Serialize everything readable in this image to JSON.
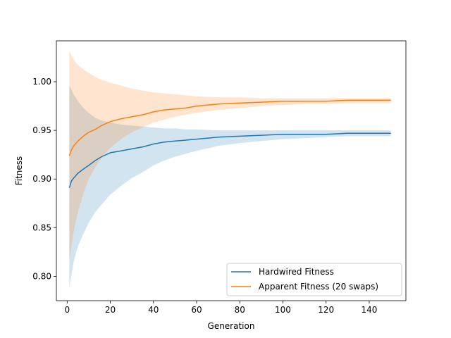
{
  "chart_data": {
    "type": "line",
    "title": "",
    "xlabel": "Generation",
    "ylabel": "Fitness",
    "xlim": [
      -5,
      157
    ],
    "ylim": [
      0.775,
      1.042
    ],
    "xticks": [
      0,
      20,
      40,
      60,
      80,
      100,
      120,
      140
    ],
    "yticks": [
      0.8,
      0.85,
      0.9,
      0.95,
      1.0
    ],
    "ytick_labels": [
      "0.80",
      "0.85",
      "0.90",
      "0.95",
      "1.00"
    ],
    "grid": false,
    "legend_position": "lower-right",
    "series": [
      {
        "name": "Hardwired Fitness",
        "color": "#1f77b4",
        "band_opacity": 0.2,
        "x": [
          1,
          2,
          3,
          5,
          8,
          10,
          13,
          16,
          20,
          25,
          30,
          35,
          40,
          45,
          50,
          55,
          60,
          70,
          80,
          90,
          100,
          110,
          120,
          130,
          135,
          140,
          150
        ],
        "y": [
          0.891,
          0.898,
          0.901,
          0.906,
          0.911,
          0.914,
          0.919,
          0.923,
          0.927,
          0.929,
          0.931,
          0.933,
          0.936,
          0.938,
          0.939,
          0.94,
          0.941,
          0.943,
          0.944,
          0.945,
          0.946,
          0.946,
          0.946,
          0.947,
          0.947,
          0.947,
          0.947
        ],
        "lower": [
          0.788,
          0.802,
          0.815,
          0.831,
          0.846,
          0.855,
          0.866,
          0.874,
          0.884,
          0.893,
          0.901,
          0.907,
          0.914,
          0.919,
          0.923,
          0.926,
          0.929,
          0.934,
          0.937,
          0.939,
          0.941,
          0.942,
          0.943,
          0.944,
          0.944,
          0.944,
          0.944
        ],
        "upper": [
          0.996,
          0.992,
          0.987,
          0.98,
          0.972,
          0.968,
          0.963,
          0.96,
          0.958,
          0.956,
          0.955,
          0.954,
          0.953,
          0.952,
          0.952,
          0.951,
          0.951,
          0.95,
          0.95,
          0.95,
          0.95,
          0.95,
          0.95,
          0.95,
          0.95,
          0.95,
          0.95
        ]
      },
      {
        "name": "Apparent Fitness (20 swaps)",
        "color": "#ff7f0e",
        "band_opacity": 0.2,
        "x": [
          1,
          2,
          3,
          5,
          8,
          10,
          13,
          16,
          20,
          25,
          30,
          35,
          40,
          45,
          50,
          55,
          60,
          70,
          80,
          90,
          100,
          110,
          120,
          130,
          135,
          140,
          150
        ],
        "y": [
          0.924,
          0.93,
          0.934,
          0.939,
          0.945,
          0.948,
          0.951,
          0.955,
          0.959,
          0.962,
          0.964,
          0.966,
          0.969,
          0.971,
          0.972,
          0.973,
          0.975,
          0.977,
          0.978,
          0.979,
          0.98,
          0.98,
          0.98,
          0.981,
          0.981,
          0.981,
          0.981
        ],
        "lower": [
          0.816,
          0.832,
          0.846,
          0.866,
          0.888,
          0.9,
          0.912,
          0.922,
          0.932,
          0.941,
          0.948,
          0.953,
          0.958,
          0.961,
          0.964,
          0.966,
          0.968,
          0.971,
          0.973,
          0.975,
          0.976,
          0.977,
          0.977,
          0.978,
          0.978,
          0.978,
          0.978
        ],
        "upper": [
          1.032,
          1.027,
          1.023,
          1.017,
          1.012,
          1.009,
          1.005,
          1.002,
          0.999,
          0.996,
          0.993,
          0.991,
          0.989,
          0.988,
          0.987,
          0.986,
          0.985,
          0.984,
          0.984,
          0.983,
          0.983,
          0.983,
          0.983,
          0.983,
          0.983,
          0.983,
          0.983
        ]
      }
    ]
  }
}
